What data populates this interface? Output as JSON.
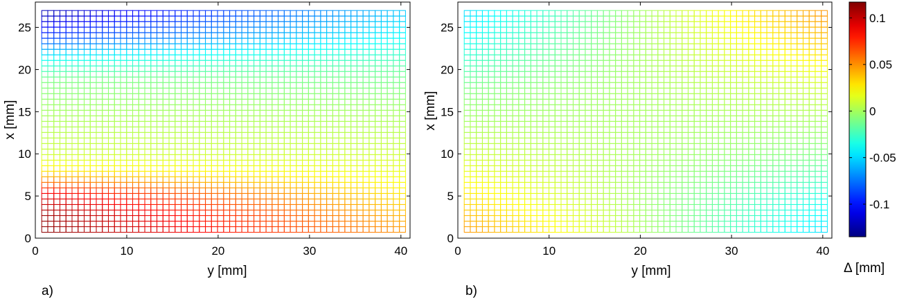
{
  "chart_data": [
    {
      "type": "heatmap",
      "panel_label": "a)",
      "xlabel": "y [mm]",
      "ylabel": "x [mm]",
      "xlim": [
        0,
        41
      ],
      "ylim": [
        0,
        28
      ],
      "x_ticks": [
        "0",
        "10",
        "20",
        "30",
        "40"
      ],
      "y_ticks": [
        "0",
        "5",
        "10",
        "15",
        "20",
        "25"
      ],
      "grid_extent": {
        "x": [
          0.7,
          40.5
        ],
        "y": [
          0.7,
          27.0
        ]
      },
      "grid_cells": {
        "x": 60,
        "y": 40
      },
      "field": {
        "corner_values": {
          "bottom_left": 0.115,
          "bottom_right": 0.05,
          "top_left": -0.125,
          "top_right": -0.055
        },
        "profile_y_at_left": [
          [
            0.7,
            0.115
          ],
          [
            3.0,
            0.11
          ],
          [
            5.5,
            0.09
          ],
          [
            8.0,
            0.03
          ],
          [
            10.0,
            0.01
          ],
          [
            15.0,
            0.0
          ],
          [
            19.0,
            -0.01
          ],
          [
            21.5,
            -0.04
          ],
          [
            24.0,
            -0.09
          ],
          [
            27.0,
            -0.125
          ]
        ],
        "profile_y_at_right": [
          [
            0.7,
            0.05
          ],
          [
            3.0,
            0.04
          ],
          [
            6.0,
            0.025
          ],
          [
            10.0,
            0.01
          ],
          [
            15.0,
            0.0
          ],
          [
            20.0,
            -0.015
          ],
          [
            24.0,
            -0.04
          ],
          [
            27.0,
            -0.055
          ]
        ]
      }
    },
    {
      "type": "heatmap",
      "panel_label": "b)",
      "xlabel": "y [mm]",
      "ylabel": "x [mm]",
      "xlim": [
        0,
        41
      ],
      "ylim": [
        0,
        28
      ],
      "x_ticks": [
        "0",
        "10",
        "20",
        "30",
        "40"
      ],
      "y_ticks": [
        "0",
        "5",
        "10",
        "15",
        "20",
        "25"
      ],
      "grid_extent": {
        "x": [
          0.7,
          40.5
        ],
        "y": [
          0.7,
          27.0
        ]
      },
      "grid_cells": {
        "x": 60,
        "y": 40
      },
      "field": {
        "corner_values": {
          "bottom_left": 0.05,
          "bottom_right": -0.05,
          "top_left": -0.05,
          "top_right": 0.05
        },
        "profile_y_at_left": [
          [
            0.7,
            0.05
          ],
          [
            5.0,
            0.03
          ],
          [
            10.0,
            0.01
          ],
          [
            14.0,
            0.0
          ],
          [
            18.0,
            -0.01
          ],
          [
            23.0,
            -0.035
          ],
          [
            27.0,
            -0.05
          ]
        ],
        "profile_y_at_right": [
          [
            0.7,
            -0.05
          ],
          [
            5.0,
            -0.035
          ],
          [
            10.0,
            -0.01
          ],
          [
            14.0,
            0.0
          ],
          [
            18.0,
            0.01
          ],
          [
            23.0,
            0.035
          ],
          [
            27.0,
            0.05
          ]
        ]
      }
    }
  ],
  "colorbar": {
    "label": "Δ [mm]",
    "range": [
      -0.135,
      0.117
    ],
    "ticks": [
      "-0.1",
      "-0.05",
      "0",
      "0.05",
      "0.1"
    ],
    "tick_values": [
      -0.1,
      -0.05,
      0,
      0.05,
      0.1
    ],
    "colormap": "jet"
  }
}
